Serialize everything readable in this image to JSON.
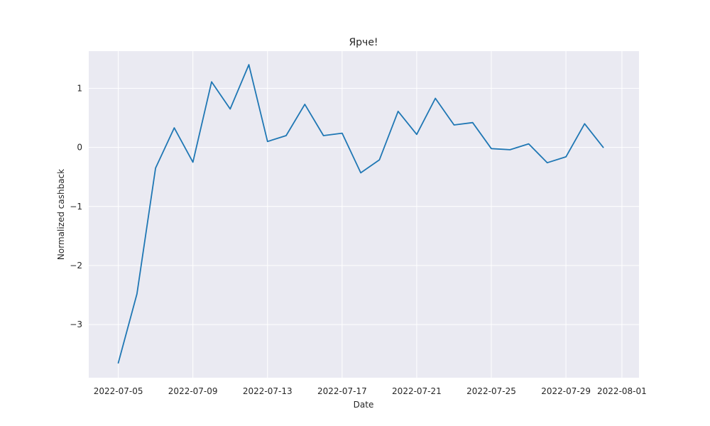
{
  "chart_data": {
    "type": "line",
    "title": "Ярче!",
    "xlabel": "Date",
    "ylabel": "Normalized cashback",
    "x": [
      "2022-07-05",
      "2022-07-06",
      "2022-07-07",
      "2022-07-08",
      "2022-07-09",
      "2022-07-10",
      "2022-07-11",
      "2022-07-12",
      "2022-07-13",
      "2022-07-14",
      "2022-07-15",
      "2022-07-16",
      "2022-07-17",
      "2022-07-18",
      "2022-07-19",
      "2022-07-20",
      "2022-07-21",
      "2022-07-22",
      "2022-07-23",
      "2022-07-24",
      "2022-07-25",
      "2022-07-26",
      "2022-07-27",
      "2022-07-28",
      "2022-07-29",
      "2022-07-30",
      "2022-07-31"
    ],
    "series": [
      {
        "values": [
          -3.65,
          -2.48,
          -0.35,
          0.33,
          -0.25,
          1.11,
          0.65,
          1.4,
          0.1,
          0.2,
          0.73,
          0.2,
          0.24,
          -0.43,
          -0.21,
          0.61,
          0.22,
          0.83,
          0.38,
          0.42,
          -0.02,
          -0.04,
          0.06,
          -0.26,
          -0.16,
          0.4,
          0.0
        ],
        "color": "#1f77b4"
      }
    ],
    "xlim": [
      "2022-07-03T10:00",
      "2022-08-01T22:00"
    ],
    "ylim": [
      -3.9,
      1.63
    ],
    "xticks": [
      "2022-07-05",
      "2022-07-09",
      "2022-07-13",
      "2022-07-17",
      "2022-07-21",
      "2022-07-25",
      "2022-07-29",
      "2022-08-01"
    ],
    "yticks": [
      1,
      0,
      -1,
      -2,
      -3
    ],
    "ytick_labels": [
      "1",
      "0",
      "−1",
      "−2",
      "−3"
    ],
    "grid": true,
    "background": "#eaeaf2",
    "grid_color": "#ffffff"
  }
}
